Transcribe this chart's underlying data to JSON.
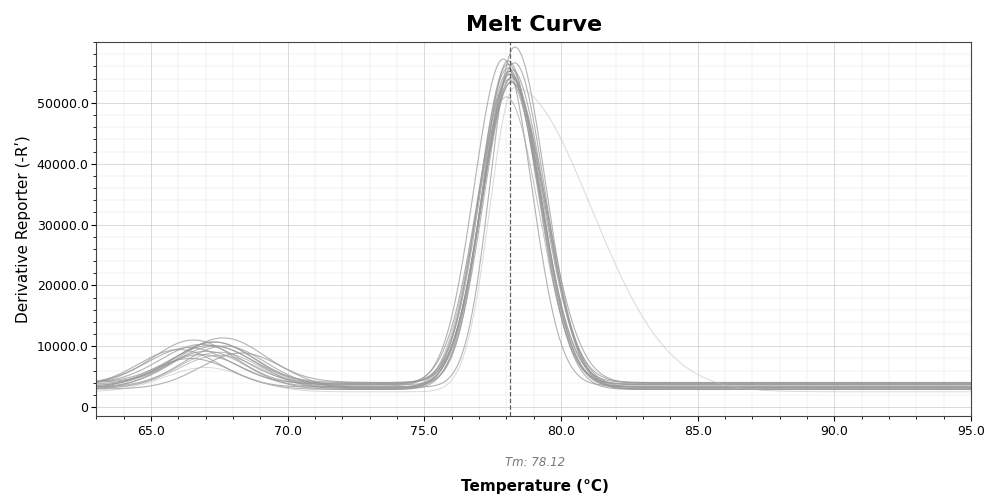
{
  "title": "Melt Curve",
  "xlabel": "Temperature (°C)",
  "ylabel": "Derivative Reporter (-Rʹ)",
  "tm_label": "Tm: 78.12",
  "tm_value": 78.12,
  "x_min": 63.0,
  "x_max": 95.0,
  "y_min": -1500,
  "y_max": 60000,
  "yticks": [
    0,
    10000,
    20000,
    30000,
    40000,
    50000
  ],
  "ytick_labels": [
    "0",
    "10000.0",
    "20000.0",
    "30000.0",
    "40000.0",
    "50000.0"
  ],
  "xticks": [
    65.0,
    70.0,
    75.0,
    80.0,
    85.0,
    90.0,
    95.0
  ],
  "background_color": "#ffffff",
  "line_color": "#999999",
  "grid_color": "#cccccc",
  "n_curves": 14,
  "title_fontsize": 16,
  "axis_label_fontsize": 11,
  "tick_fontsize": 9
}
